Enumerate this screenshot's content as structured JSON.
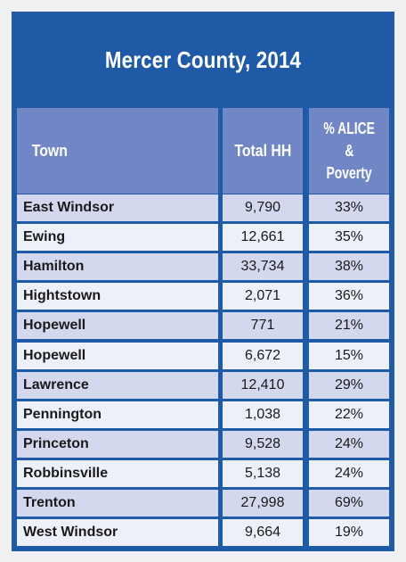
{
  "title": "Mercer County, 2014",
  "headers": {
    "town": "Town",
    "total_hh": "Total HH",
    "pct_line1": "% ALICE",
    "pct_line2": "&",
    "pct_line3": "Poverty"
  },
  "rows": [
    {
      "town": "East Windsor",
      "hh": "9,790",
      "pct": "33%"
    },
    {
      "town": "Ewing",
      "hh": "12,661",
      "pct": "35%"
    },
    {
      "town": "Hamilton",
      "hh": "33,734",
      "pct": "38%"
    },
    {
      "town": "Hightstown",
      "hh": "2,071",
      "pct": "36%"
    },
    {
      "town": "Hopewell",
      "hh": "771",
      "pct": "21%"
    },
    {
      "town": "Hopewell",
      "hh": "6,672",
      "pct": "15%"
    },
    {
      "town": "Lawrence",
      "hh": "12,410",
      "pct": "29%"
    },
    {
      "town": "Pennington",
      "hh": "1,038",
      "pct": "22%"
    },
    {
      "town": "Princeton",
      "hh": "9,528",
      "pct": "24%"
    },
    {
      "town": "Robbinsville",
      "hh": "5,138",
      "pct": "24%"
    },
    {
      "town": "Trenton",
      "hh": "27,998",
      "pct": "69%"
    },
    {
      "town": "West Windsor",
      "hh": "9,664",
      "pct": "19%"
    }
  ]
}
